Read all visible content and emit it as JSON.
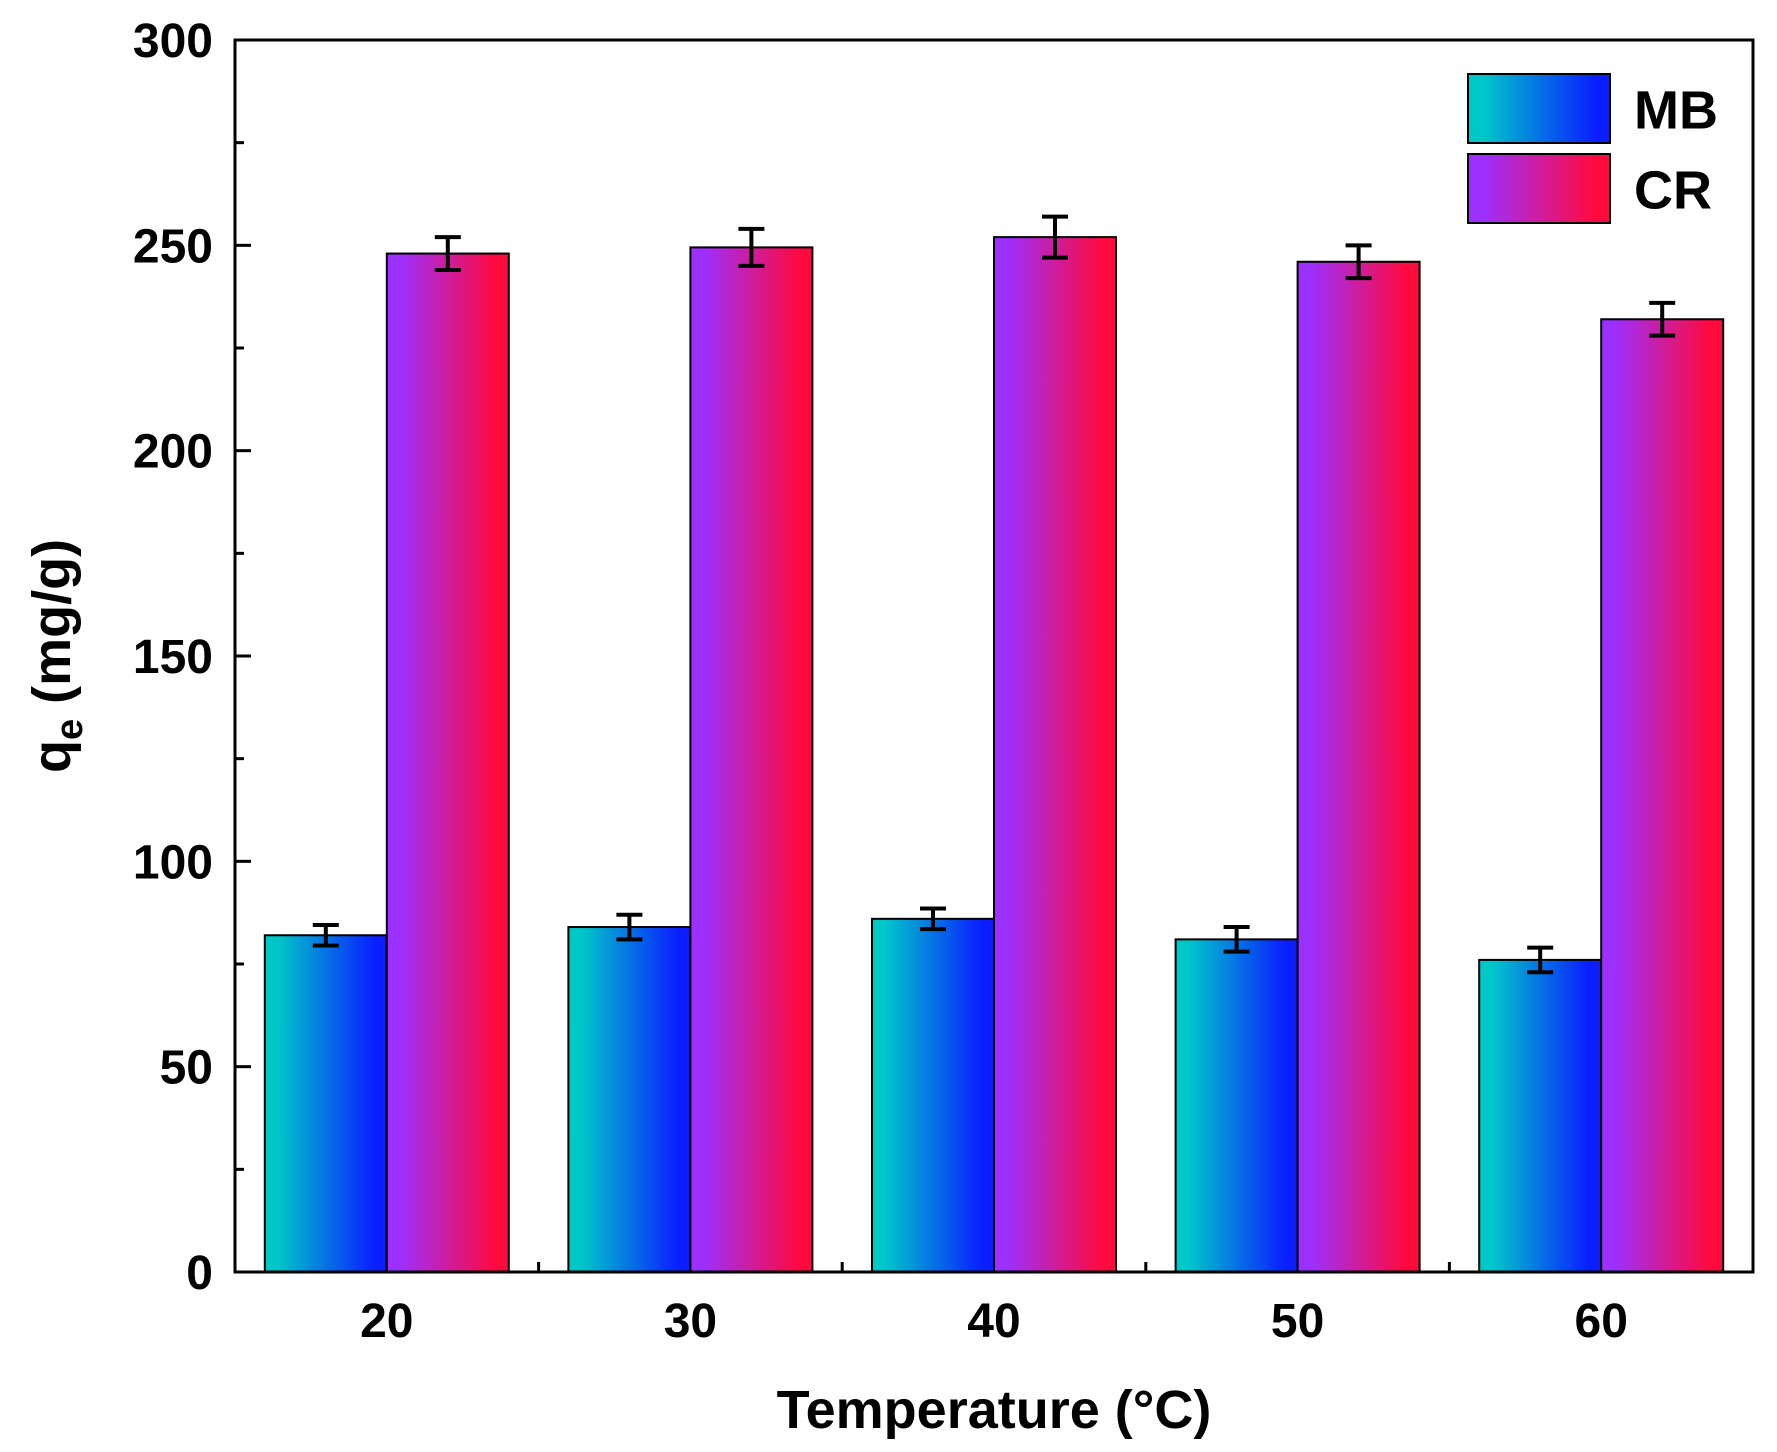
{
  "chart_data": {
    "type": "bar",
    "title": "",
    "xlabel": "Temperature (°C)",
    "ylabel": {
      "base": "q",
      "subscript": "e",
      "unit": " (mg/g)"
    },
    "categories": [
      "20",
      "30",
      "40",
      "50",
      "60"
    ],
    "series": [
      {
        "name": "MB",
        "values": [
          82,
          84,
          86,
          81,
          76
        ],
        "errors": [
          2.5,
          3,
          2.5,
          3,
          3
        ],
        "gradient": [
          "#00c8c8",
          "#0a1eff"
        ]
      },
      {
        "name": "CR",
        "values": [
          248,
          249.5,
          252,
          246,
          232
        ],
        "errors": [
          4,
          4.5,
          5,
          4,
          4
        ],
        "gradient": [
          "#9b30ff",
          "#ff0a3c"
        ]
      }
    ],
    "ylim": [
      0,
      300
    ],
    "yticks": [
      "0",
      "50",
      "100",
      "150",
      "200",
      "250",
      "300"
    ],
    "legend_position": "top-right",
    "grid": false
  }
}
